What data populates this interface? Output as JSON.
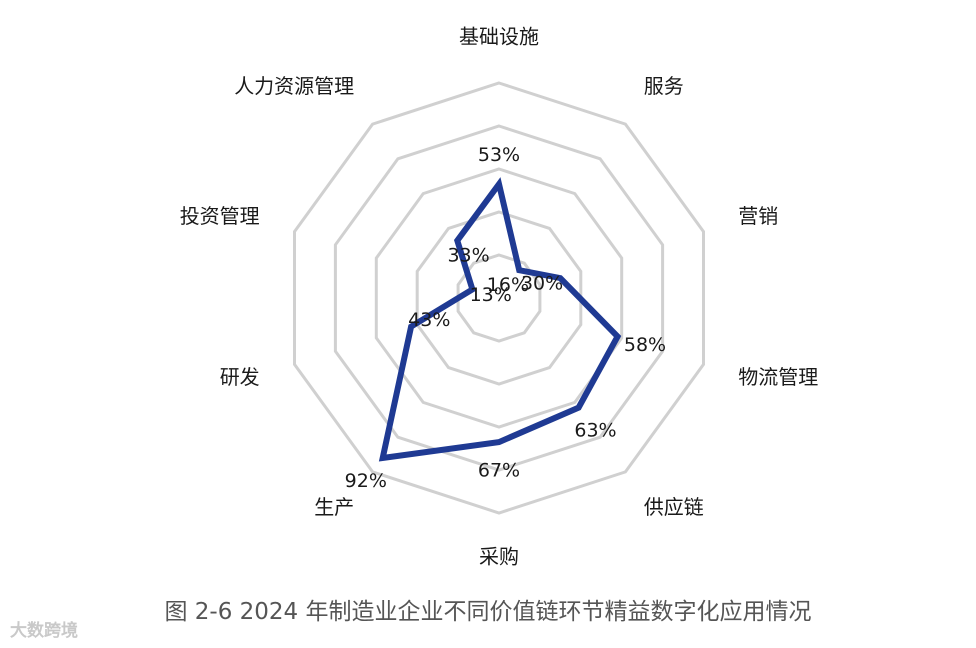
{
  "chart_data": {
    "type": "radar",
    "title": "",
    "categories": [
      "基础设施",
      "服务",
      "营销",
      "物流管理",
      "供应链",
      "采购",
      "生产",
      "研发",
      "投资管理",
      "人力资源管理"
    ],
    "series": [
      {
        "values": [
          53,
          16,
          30,
          58,
          63,
          67,
          92,
          43,
          13,
          33
        ],
        "value_labels": [
          "53%",
          "16%",
          "30%",
          "58%",
          "63%",
          "67%",
          "92%",
          "43%",
          "13%",
          "33%"
        ],
        "color": "#1f3a93"
      }
    ],
    "rlim": [
      0,
      100
    ],
    "rings": 5,
    "grid": true,
    "grid_color": "#d0d0d0"
  },
  "caption": "图 2-6 2024 年制造业企业不同价值链环节精益数字化应用情况",
  "watermark": "大数跨境"
}
